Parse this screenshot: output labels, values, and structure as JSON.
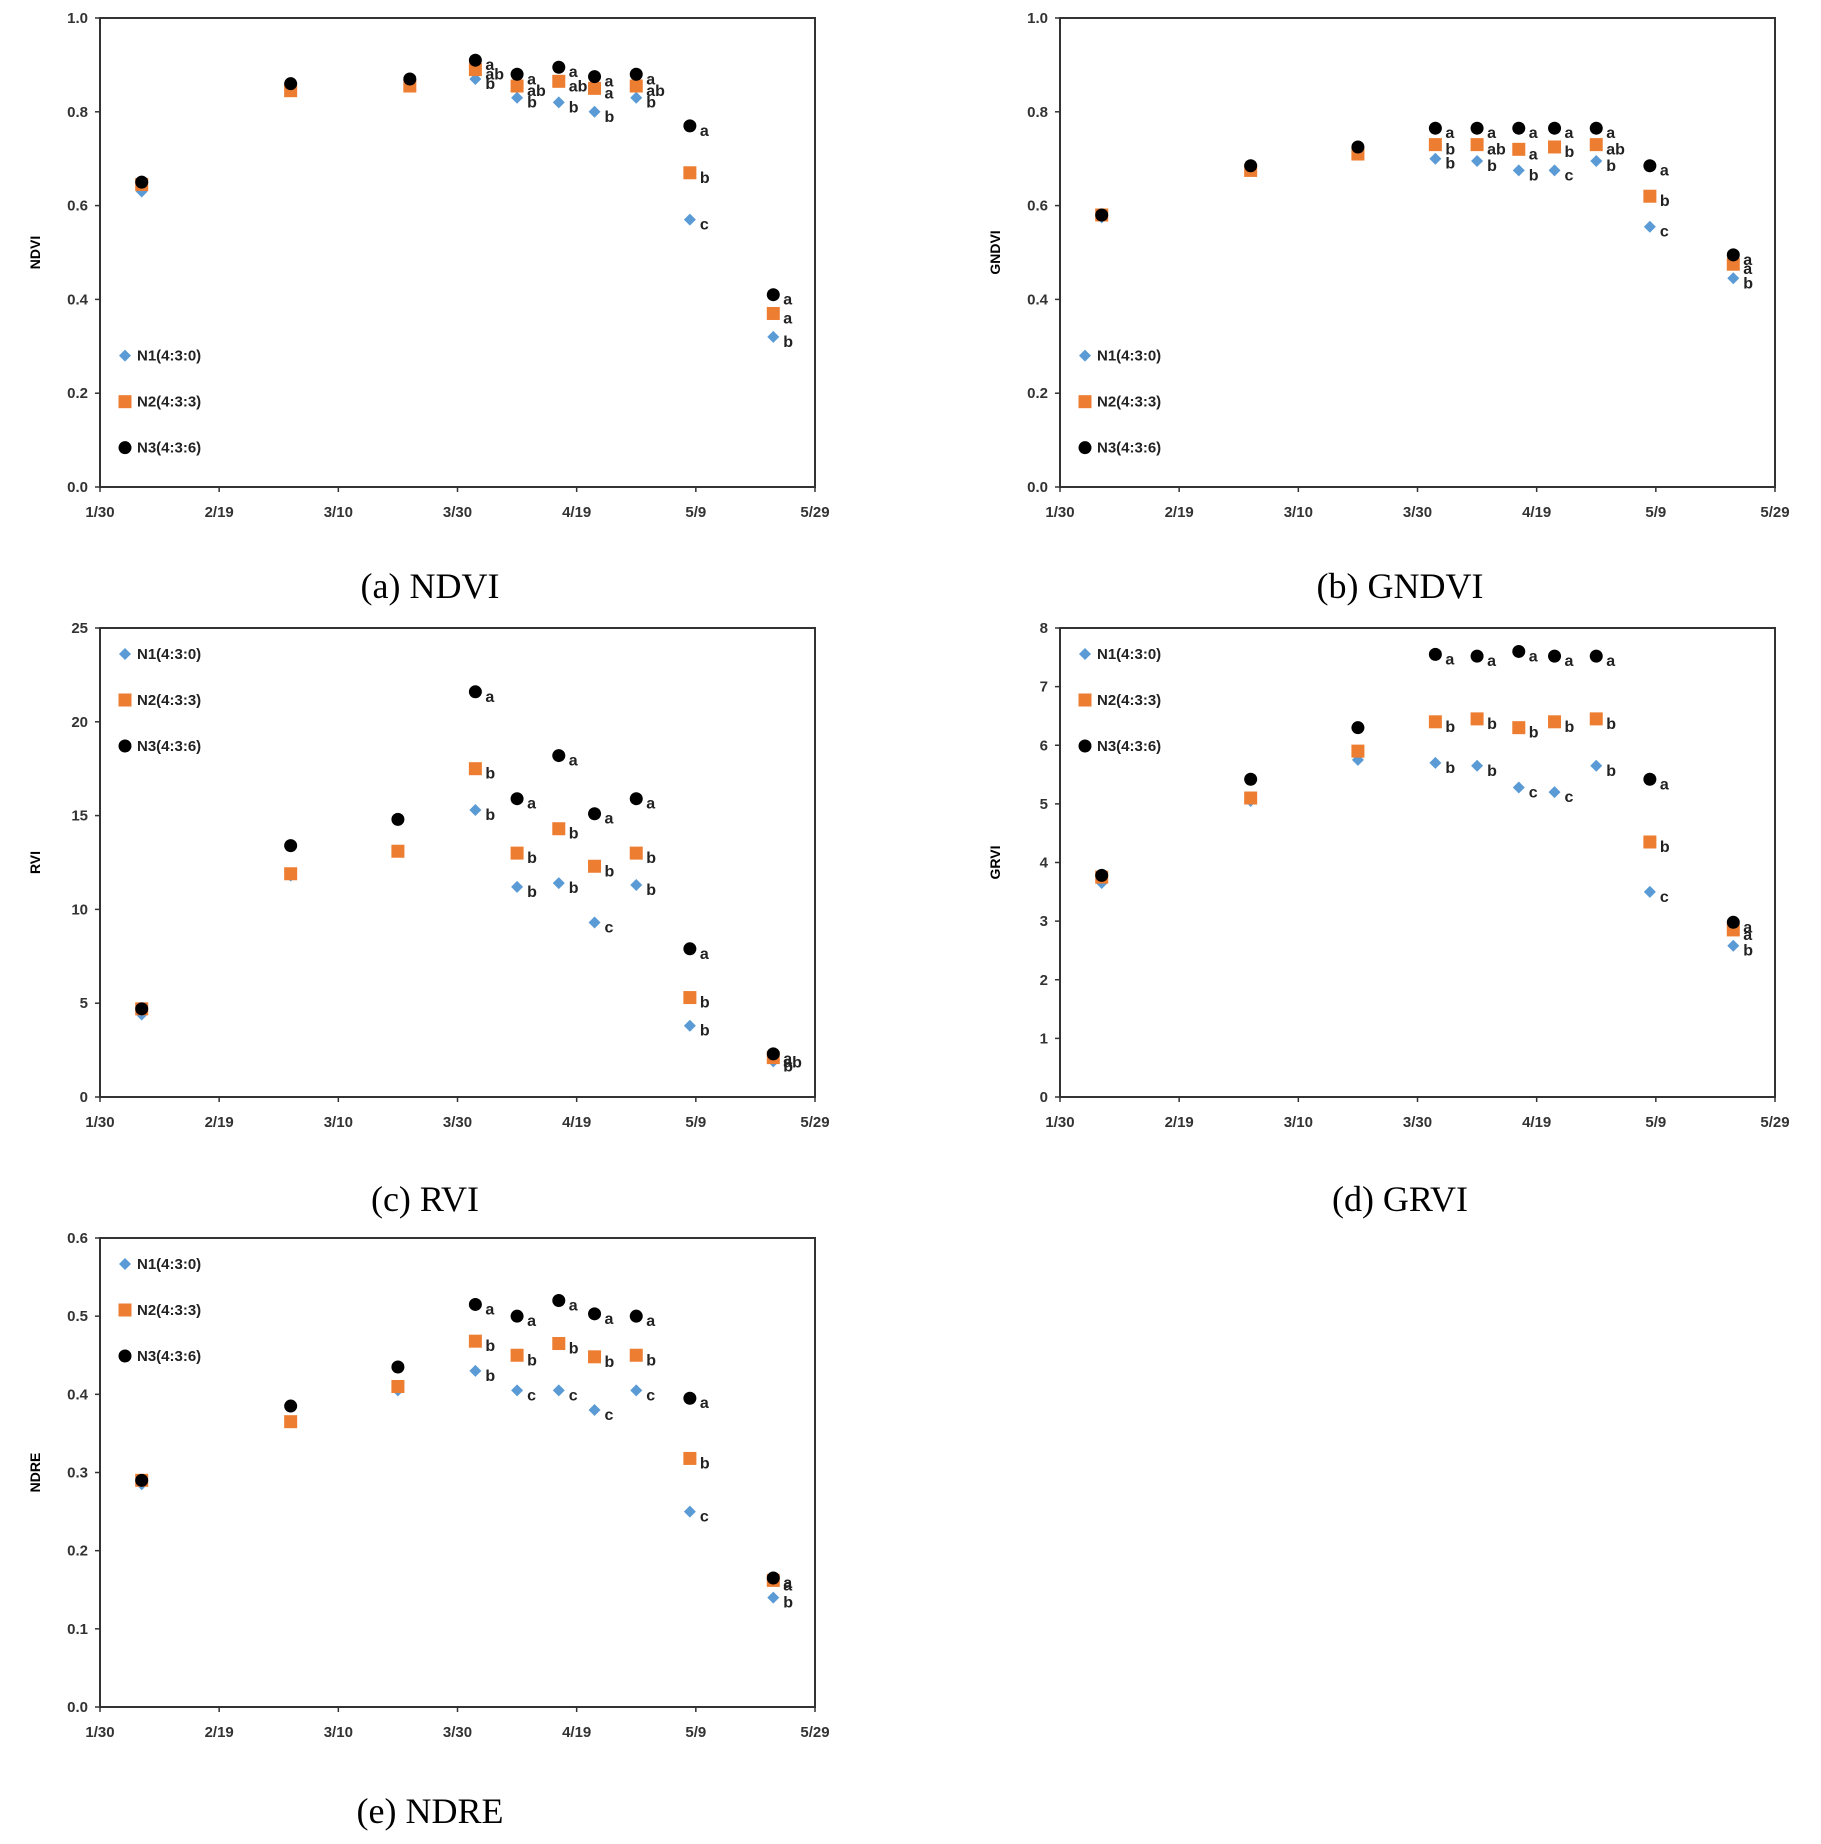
{
  "colors": {
    "N1": "#5b9bd5",
    "N2": "#ed7d31",
    "N3": "#000000",
    "frame": "#333333"
  },
  "x_ticks": [
    "1/30",
    "2/19",
    "3/10",
    "3/30",
    "4/19",
    "5/9",
    "5/29"
  ],
  "legend": [
    "N1(4:3:0)",
    "N2(4:3:3)",
    "N3(4:3:6)"
  ],
  "chart_data": [
    {
      "id": "ndvi",
      "type": "scatter",
      "caption": "(a) NDVI",
      "ylabel": "NDVI",
      "ylim": [
        0,
        1
      ],
      "y_ticks": [
        "0.0",
        "0.2",
        "0.4",
        "0.6",
        "0.8",
        "1.0"
      ],
      "xlim_days": [
        0,
        120
      ],
      "x_days": [
        7,
        32,
        52,
        63,
        70,
        77,
        83,
        90,
        99,
        113
      ],
      "legend_position": "bottom-left",
      "series": [
        {
          "name": "N1(4:3:0)",
          "values": [
            0.63,
            0.85,
            0.86,
            0.87,
            0.83,
            0.82,
            0.8,
            0.83,
            0.57,
            0.32
          ],
          "letters": [
            "",
            "",
            "",
            "b",
            "b",
            "b",
            "b",
            "b",
            "c",
            "b"
          ]
        },
        {
          "name": "N2(4:3:3)",
          "values": [
            0.645,
            0.845,
            0.855,
            0.89,
            0.855,
            0.865,
            0.85,
            0.855,
            0.67,
            0.37
          ],
          "letters": [
            "",
            "",
            "",
            "ab",
            "ab",
            "ab",
            "a",
            "ab",
            "b",
            "a"
          ]
        },
        {
          "name": "N3(4:3:6)",
          "values": [
            0.65,
            0.86,
            0.87,
            0.91,
            0.88,
            0.895,
            0.875,
            0.88,
            0.77,
            0.41
          ],
          "letters": [
            "",
            "",
            "",
            "a",
            "a",
            "a",
            "a",
            "a",
            "a",
            "a"
          ]
        }
      ]
    },
    {
      "id": "gndvi",
      "type": "scatter",
      "caption": "(b) GNDVI",
      "ylabel": "GNDVI",
      "ylim": [
        0,
        1
      ],
      "y_ticks": [
        "0.0",
        "0.2",
        "0.4",
        "0.6",
        "0.8",
        "1.0"
      ],
      "xlim_days": [
        0,
        120
      ],
      "x_days": [
        7,
        32,
        50,
        63,
        70,
        77,
        83,
        90,
        99,
        113
      ],
      "legend_position": "bottom-left",
      "series": [
        {
          "name": "N1(4:3:0)",
          "values": [
            0.575,
            0.675,
            0.71,
            0.7,
            0.695,
            0.675,
            0.675,
            0.695,
            0.555,
            0.445
          ],
          "letters": [
            "",
            "",
            "",
            "b",
            "b",
            "b",
            "c",
            "b",
            "c",
            "b"
          ]
        },
        {
          "name": "N2(4:3:3)",
          "values": [
            0.58,
            0.675,
            0.71,
            0.73,
            0.73,
            0.72,
            0.725,
            0.73,
            0.62,
            0.475
          ],
          "letters": [
            "",
            "",
            "",
            "b",
            "ab",
            "a",
            "b",
            "ab",
            "b",
            "a"
          ]
        },
        {
          "name": "N3(4:3:6)",
          "values": [
            0.58,
            0.685,
            0.725,
            0.765,
            0.765,
            0.765,
            0.765,
            0.765,
            0.685,
            0.495
          ],
          "letters": [
            "",
            "",
            "",
            "a",
            "a",
            "a",
            "a",
            "a",
            "a",
            "a"
          ]
        }
      ]
    },
    {
      "id": "rvi",
      "type": "scatter",
      "caption": "(c) RVI",
      "ylabel": "RVI",
      "ylim": [
        0,
        25
      ],
      "y_ticks": [
        "0",
        "5",
        "10",
        "15",
        "20",
        "25"
      ],
      "xlim_days": [
        0,
        120
      ],
      "x_days": [
        7,
        32,
        50,
        63,
        70,
        77,
        83,
        90,
        99,
        113
      ],
      "legend_position": "top-left",
      "series": [
        {
          "name": "N1(4:3:0)",
          "values": [
            4.4,
            11.8,
            13.1,
            15.3,
            11.2,
            11.4,
            9.3,
            11.3,
            3.8,
            1.9
          ],
          "letters": [
            "",
            "",
            "",
            "b",
            "b",
            "b",
            "c",
            "b",
            "b",
            "b"
          ]
        },
        {
          "name": "N2(4:3:3)",
          "values": [
            4.7,
            11.9,
            13.1,
            17.5,
            13.0,
            14.3,
            12.3,
            13.0,
            5.3,
            2.1
          ],
          "letters": [
            "",
            "",
            "",
            "b",
            "b",
            "b",
            "b",
            "b",
            "b",
            "ab"
          ]
        },
        {
          "name": "N3(4:3:6)",
          "values": [
            4.7,
            13.4,
            14.8,
            21.6,
            15.9,
            18.2,
            15.1,
            15.9,
            7.9,
            2.3
          ],
          "letters": [
            "",
            "",
            "",
            "a",
            "a",
            "a",
            "a",
            "a",
            "a",
            "a"
          ]
        }
      ]
    },
    {
      "id": "grvi",
      "type": "scatter",
      "caption": "(d) GRVI",
      "ylabel": "GRVI",
      "ylim": [
        0,
        8
      ],
      "y_ticks": [
        "0",
        "1",
        "2",
        "3",
        "4",
        "5",
        "6",
        "7",
        "8"
      ],
      "xlim_days": [
        0,
        120
      ],
      "x_days": [
        7,
        32,
        50,
        63,
        70,
        77,
        83,
        90,
        99,
        113
      ],
      "legend_position": "top-left",
      "series": [
        {
          "name": "N1(4:3:0)",
          "values": [
            3.65,
            5.05,
            5.75,
            5.7,
            5.65,
            5.28,
            5.2,
            5.65,
            3.5,
            2.58
          ],
          "letters": [
            "",
            "",
            "",
            "b",
            "b",
            "c",
            "c",
            "b",
            "c",
            "b"
          ]
        },
        {
          "name": "N2(4:3:3)",
          "values": [
            3.75,
            5.1,
            5.9,
            6.4,
            6.45,
            6.3,
            6.4,
            6.45,
            4.35,
            2.85
          ],
          "letters": [
            "",
            "",
            "",
            "b",
            "b",
            "b",
            "b",
            "b",
            "b",
            "a"
          ]
        },
        {
          "name": "N3(4:3:6)",
          "values": [
            3.78,
            5.42,
            6.3,
            7.55,
            7.52,
            7.6,
            7.52,
            7.52,
            5.42,
            2.98
          ],
          "letters": [
            "",
            "",
            "",
            "a",
            "a",
            "a",
            "a",
            "a",
            "a",
            "a"
          ]
        }
      ]
    },
    {
      "id": "ndre",
      "type": "scatter",
      "caption": "(e) NDRE",
      "ylabel": "NDRE",
      "ylim": [
        0,
        0.6
      ],
      "y_ticks": [
        "0.0",
        "0.1",
        "0.2",
        "0.3",
        "0.4",
        "0.5",
        "0.6"
      ],
      "xlim_days": [
        0,
        120
      ],
      "x_days": [
        7,
        32,
        50,
        63,
        70,
        77,
        83,
        90,
        99,
        113
      ],
      "legend_position": "top-left",
      "series": [
        {
          "name": "N1(4:3:0)",
          "values": [
            0.285,
            0.365,
            0.405,
            0.43,
            0.405,
            0.405,
            0.38,
            0.405,
            0.25,
            0.14
          ],
          "letters": [
            "",
            "",
            "",
            "b",
            "c",
            "c",
            "c",
            "c",
            "c",
            "b"
          ]
        },
        {
          "name": "N2(4:3:3)",
          "values": [
            0.29,
            0.365,
            0.41,
            0.468,
            0.45,
            0.465,
            0.448,
            0.45,
            0.318,
            0.162
          ],
          "letters": [
            "",
            "",
            "",
            "b",
            "b",
            "b",
            "b",
            "b",
            "b",
            "a"
          ]
        },
        {
          "name": "N3(4:3:6)",
          "values": [
            0.29,
            0.385,
            0.435,
            0.515,
            0.5,
            0.52,
            0.503,
            0.5,
            0.395,
            0.165
          ],
          "letters": [
            "",
            "",
            "",
            "a",
            "a",
            "a",
            "a",
            "a",
            "a",
            "a"
          ]
        }
      ]
    }
  ]
}
